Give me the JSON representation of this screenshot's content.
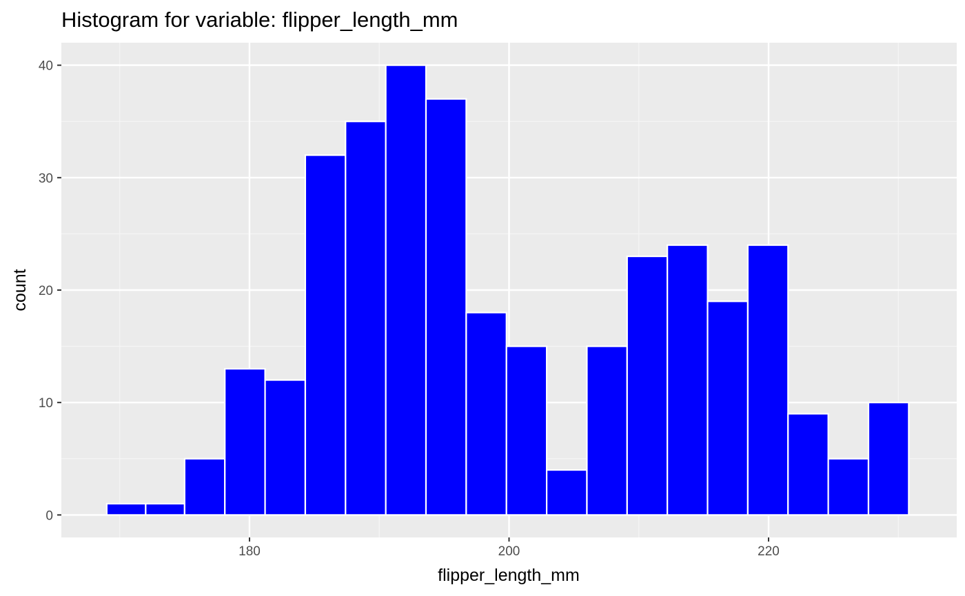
{
  "chart_data": {
    "type": "bar",
    "title": "Histogram for variable: flipper_length_mm",
    "xlabel": "flipper_length_mm",
    "ylabel": "count",
    "bins": [
      {
        "x0": 169.0,
        "x1": 172.0,
        "count": 1
      },
      {
        "x0": 172.0,
        "x1": 175.0,
        "count": 1
      },
      {
        "x0": 175.0,
        "x1": 178.1,
        "count": 5
      },
      {
        "x0": 178.1,
        "x1": 181.2,
        "count": 13
      },
      {
        "x0": 181.2,
        "x1": 184.3,
        "count": 12
      },
      {
        "x0": 184.3,
        "x1": 187.4,
        "count": 32
      },
      {
        "x0": 187.4,
        "x1": 190.5,
        "count": 35
      },
      {
        "x0": 190.5,
        "x1": 193.6,
        "count": 40
      },
      {
        "x0": 193.6,
        "x1": 196.7,
        "count": 37
      },
      {
        "x0": 196.7,
        "x1": 199.8,
        "count": 18
      },
      {
        "x0": 199.8,
        "x1": 202.9,
        "count": 15
      },
      {
        "x0": 202.9,
        "x1": 206.0,
        "count": 4
      },
      {
        "x0": 206.0,
        "x1": 209.1,
        "count": 15
      },
      {
        "x0": 209.1,
        "x1": 212.2,
        "count": 23
      },
      {
        "x0": 212.2,
        "x1": 215.3,
        "count": 24
      },
      {
        "x0": 215.3,
        "x1": 218.4,
        "count": 19
      },
      {
        "x0": 218.4,
        "x1": 221.5,
        "count": 24
      },
      {
        "x0": 221.5,
        "x1": 224.6,
        "count": 9
      },
      {
        "x0": 224.6,
        "x1": 227.7,
        "count": 5
      },
      {
        "x0": 227.7,
        "x1": 230.8,
        "count": 10
      }
    ],
    "xticks": [
      180,
      200,
      220
    ],
    "yticks": [
      0,
      10,
      20,
      30,
      40
    ],
    "xlim": [
      165.5,
      234.5
    ],
    "ylim": [
      -2,
      42
    ],
    "grid": true,
    "colors": {
      "bar_fill": "#0000ff",
      "bar_outline": "#ffffff",
      "panel_background": "#ebebeb",
      "grid_major": "#ffffff",
      "grid_minor": "#f5f5f5"
    }
  }
}
